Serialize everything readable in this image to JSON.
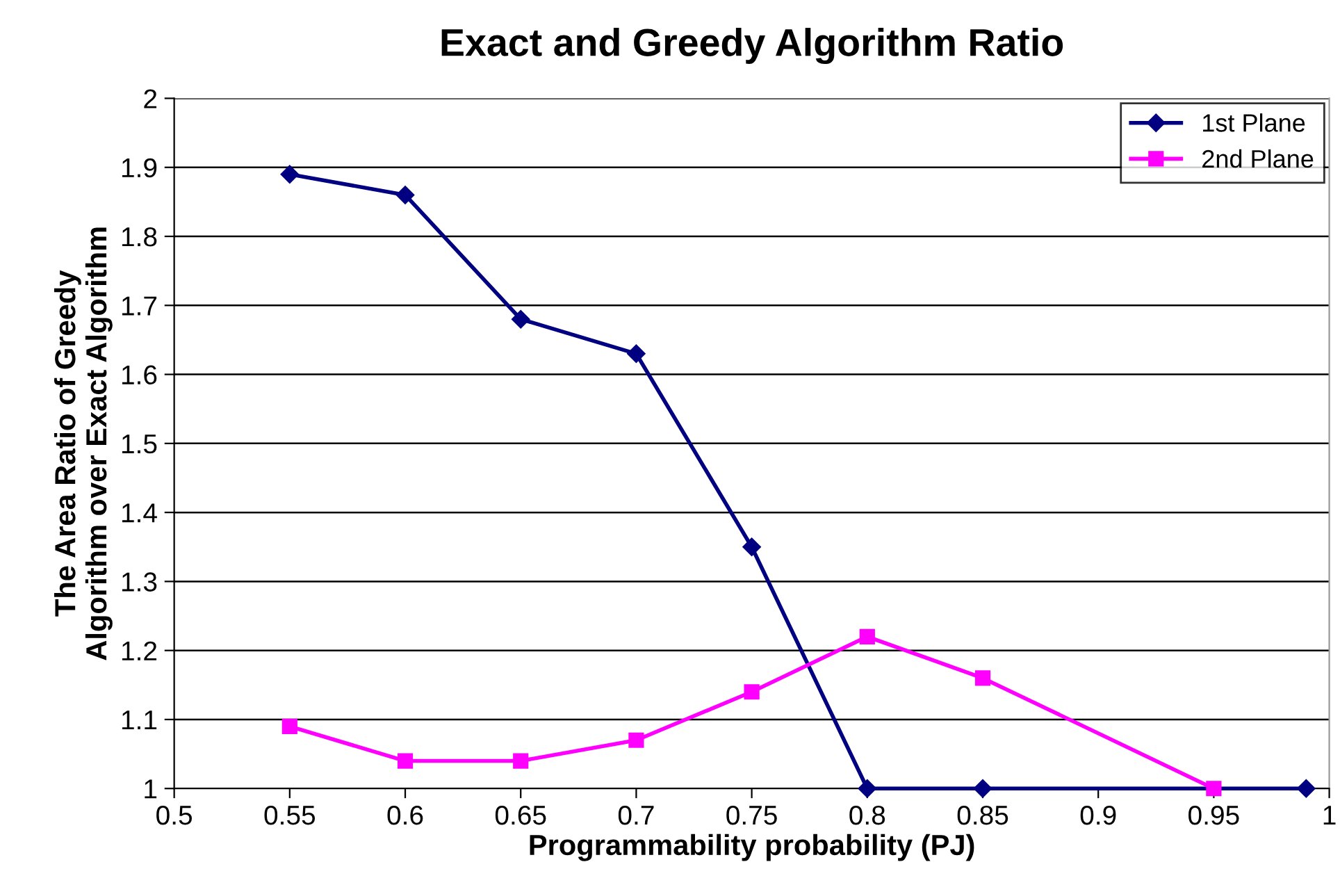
{
  "chart_data": {
    "type": "line",
    "title": "Exact and Greedy Algorithm Ratio",
    "xlabel": "Programmability probability (PJ)",
    "ylabel": "The Area Ratio of Greedy\nAlgorithm over Exact Algorithm",
    "series": [
      {
        "name": "1st Plane",
        "color": "#000080",
        "marker": "diamond",
        "x": [
          0.55,
          0.6,
          0.65,
          0.7,
          0.75,
          0.8,
          0.85,
          0.99
        ],
        "values": [
          1.89,
          1.86,
          1.68,
          1.63,
          1.35,
          1.0,
          1.0,
          1.0
        ]
      },
      {
        "name": "2nd Plane",
        "color": "#ff00ff",
        "marker": "square",
        "x": [
          0.55,
          0.6,
          0.65,
          0.7,
          0.75,
          0.8,
          0.85,
          0.95
        ],
        "values": [
          1.09,
          1.04,
          1.04,
          1.07,
          1.14,
          1.22,
          1.16,
          1.0
        ]
      }
    ],
    "xlim": [
      0.5,
      1
    ],
    "xticks": [
      0.5,
      0.55,
      0.6,
      0.65,
      0.7,
      0.75,
      0.8,
      0.85,
      0.9,
      0.95,
      1
    ],
    "ylim": [
      1,
      2
    ],
    "yticks": [
      1,
      1.1,
      1.2,
      1.3,
      1.4,
      1.5,
      1.6,
      1.7,
      1.8,
      1.9,
      2
    ],
    "grid": "y",
    "legend": "top right",
    "line_style": "solid"
  }
}
